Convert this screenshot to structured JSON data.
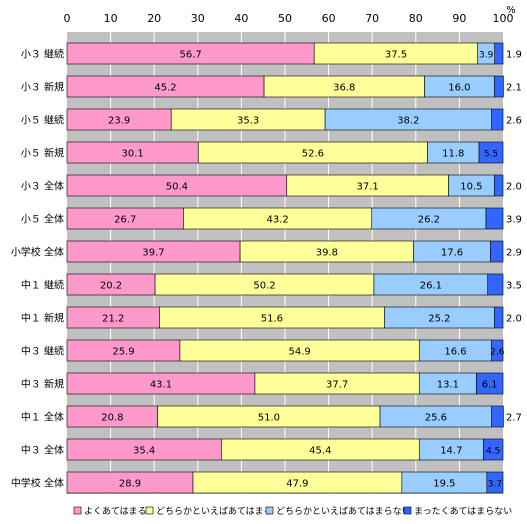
{
  "chart_data": {
    "type": "bar",
    "orientation": "horizontal",
    "stacked": true,
    "unit": "%",
    "xlim": [
      0,
      100
    ],
    "x_ticks": [
      0,
      10,
      20,
      30,
      40,
      50,
      60,
      70,
      80,
      90,
      100
    ],
    "grid": true,
    "legend_position": "bottom",
    "categories": [
      "小３ 継続",
      "小３ 新規",
      "小５ 継続",
      "小５ 新規",
      "小３ 全体",
      "小５ 全体",
      "小学校 全体",
      "中１ 継続",
      "中１ 新規",
      "中３ 継続",
      "中３ 新規",
      "中１ 全体",
      "中３ 全体",
      "中学校 全体"
    ],
    "series": [
      {
        "name": "よくあてはまる",
        "color": "#ff99cc",
        "values": [
          56.7,
          45.2,
          23.9,
          30.1,
          50.4,
          26.7,
          39.7,
          20.2,
          21.2,
          25.9,
          43.1,
          20.8,
          35.4,
          28.9
        ]
      },
      {
        "name": "どちらかといえばあてはまる",
        "color": "#ffff99",
        "values": [
          37.5,
          36.8,
          35.3,
          52.6,
          37.1,
          43.2,
          39.8,
          50.2,
          51.6,
          54.9,
          37.7,
          51.0,
          45.4,
          47.9
        ]
      },
      {
        "name": "どちらかといえばあてはまらない",
        "color": "#99ccff",
        "values": [
          3.9,
          16.0,
          38.2,
          11.8,
          10.5,
          26.2,
          17.6,
          26.1,
          25.2,
          16.6,
          13.1,
          25.6,
          14.7,
          19.5
        ]
      },
      {
        "name": "まったくあてはまらない",
        "color": "#3366ff",
        "values": [
          1.9,
          2.1,
          2.6,
          5.5,
          2.0,
          3.9,
          2.9,
          3.5,
          2.0,
          2.6,
          6.1,
          2.7,
          4.5,
          3.7
        ]
      }
    ],
    "inside_labels": [
      [
        "56.7",
        "37.5",
        "3.9",
        ""
      ],
      [
        "45.2",
        "36.8",
        "16.0",
        ""
      ],
      [
        "23.9",
        "35.3",
        "38.2",
        ""
      ],
      [
        "30.1",
        "52.6",
        "11.8",
        "5.5"
      ],
      [
        "50.4",
        "37.1",
        "10.5",
        ""
      ],
      [
        "26.7",
        "43.2",
        "26.2",
        ""
      ],
      [
        "39.7",
        "39.8",
        "17.6",
        ""
      ],
      [
        "20.2",
        "50.2",
        "26.1",
        ""
      ],
      [
        "21.2",
        "51.6",
        "25.2",
        ""
      ],
      [
        "25.9",
        "54.9",
        "16.6",
        "2.6"
      ],
      [
        "43.1",
        "37.7",
        "13.1",
        "6.1"
      ],
      [
        "20.8",
        "51.0",
        "25.6",
        ""
      ],
      [
        "35.4",
        "45.4",
        "14.7",
        "4.5"
      ],
      [
        "28.9",
        "47.9",
        "19.5",
        "3.7"
      ]
    ],
    "outside_labels": [
      "1.9",
      "2.1",
      "2.6",
      "",
      "2.0",
      "3.9",
      "2.9",
      "3.5",
      "2.0",
      "",
      "",
      "2.7",
      "",
      ""
    ],
    "colors": {
      "plot_background": "#c0c0c0",
      "gridline": "#ffffff",
      "bar_border": "#000000"
    }
  }
}
